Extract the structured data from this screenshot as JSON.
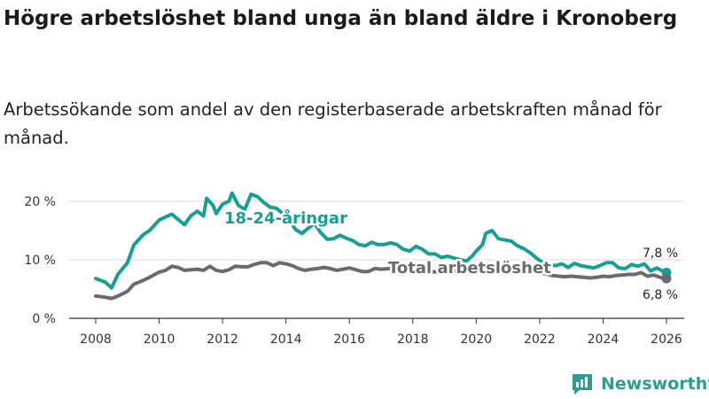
{
  "header": {
    "title": "Högre arbetslöshet bland unga än bland äldre i Kronoberg",
    "subtitle": "Arbetssökande som andel av den registerbaserade arbetskraften månad för månad."
  },
  "branding": {
    "name": "Newsworthy",
    "color": "#2e9c8f",
    "icon": "bar-chart-logo-icon"
  },
  "chart_data": {
    "type": "line",
    "title": "Högre arbetslöshet bland unga än bland äldre i Kronoberg",
    "subtitle": "Arbetssökande som andel av den registerbaserade arbetskraften månad för månad.",
    "xlabel": "",
    "ylabel": "",
    "xlim": [
      2007.6,
      2026.4
    ],
    "ylim": [
      0,
      22
    ],
    "x_ticks": [
      2008,
      2010,
      2012,
      2014,
      2016,
      2018,
      2020,
      2022,
      2024,
      2026
    ],
    "x_tick_labels": [
      "2008",
      "2010",
      "2012",
      "2014",
      "2016",
      "2018",
      "2020",
      "2022",
      "2024",
      "2026"
    ],
    "y_ticks": [
      0,
      10,
      20
    ],
    "y_tick_labels": [
      "0 %",
      "10 %",
      "20 %"
    ],
    "grid": true,
    "legend": "inline labels",
    "series": [
      {
        "name": "18-24-åringar",
        "color": "#16a094",
        "end_label": "7,8 %",
        "points": [
          [
            2008.0,
            6.8
          ],
          [
            2008.3,
            6.2
          ],
          [
            2008.5,
            5.2
          ],
          [
            2008.7,
            7.5
          ],
          [
            2009.0,
            9.5
          ],
          [
            2009.2,
            12.5
          ],
          [
            2009.5,
            14.3
          ],
          [
            2009.7,
            15.0
          ],
          [
            2010.0,
            16.8
          ],
          [
            2010.2,
            17.3
          ],
          [
            2010.4,
            17.8
          ],
          [
            2010.6,
            16.9
          ],
          [
            2010.8,
            16.0
          ],
          [
            2011.0,
            17.5
          ],
          [
            2011.2,
            18.3
          ],
          [
            2011.4,
            17.5
          ],
          [
            2011.5,
            20.5
          ],
          [
            2011.7,
            19.3
          ],
          [
            2011.8,
            17.9
          ],
          [
            2012.0,
            19.5
          ],
          [
            2012.2,
            20.0
          ],
          [
            2012.3,
            21.4
          ],
          [
            2012.5,
            19.3
          ],
          [
            2012.7,
            18.6
          ],
          [
            2012.9,
            21.2
          ],
          [
            2013.1,
            20.8
          ],
          [
            2013.3,
            19.8
          ],
          [
            2013.5,
            19.0
          ],
          [
            2013.7,
            18.8
          ],
          [
            2013.9,
            17.9
          ],
          [
            2014.1,
            16.9
          ],
          [
            2014.3,
            15.2
          ],
          [
            2014.5,
            14.5
          ],
          [
            2014.7,
            15.4
          ],
          [
            2014.9,
            16.2
          ],
          [
            2015.1,
            14.6
          ],
          [
            2015.3,
            13.5
          ],
          [
            2015.5,
            13.6
          ],
          [
            2015.7,
            14.2
          ],
          [
            2015.9,
            13.7
          ],
          [
            2016.1,
            13.3
          ],
          [
            2016.3,
            12.6
          ],
          [
            2016.5,
            12.4
          ],
          [
            2016.7,
            13.0
          ],
          [
            2016.9,
            12.6
          ],
          [
            2017.1,
            12.6
          ],
          [
            2017.3,
            12.9
          ],
          [
            2017.5,
            12.6
          ],
          [
            2017.7,
            11.8
          ],
          [
            2017.9,
            11.5
          ],
          [
            2018.1,
            12.3
          ],
          [
            2018.3,
            11.8
          ],
          [
            2018.5,
            11.0
          ],
          [
            2018.7,
            11.0
          ],
          [
            2018.9,
            10.4
          ],
          [
            2019.1,
            10.6
          ],
          [
            2019.3,
            10.3
          ],
          [
            2019.5,
            10.0
          ],
          [
            2019.7,
            9.8
          ],
          [
            2019.9,
            10.8
          ],
          [
            2020.0,
            11.5
          ],
          [
            2020.2,
            12.6
          ],
          [
            2020.3,
            14.5
          ],
          [
            2020.5,
            15.0
          ],
          [
            2020.7,
            13.6
          ],
          [
            2020.9,
            13.4
          ],
          [
            2021.1,
            13.2
          ],
          [
            2021.3,
            12.4
          ],
          [
            2021.5,
            11.9
          ],
          [
            2021.7,
            11.2
          ],
          [
            2021.9,
            10.3
          ],
          [
            2022.1,
            9.5
          ],
          [
            2022.3,
            9.1
          ],
          [
            2022.5,
            9.0
          ],
          [
            2022.7,
            9.3
          ],
          [
            2022.9,
            8.7
          ],
          [
            2023.1,
            9.4
          ],
          [
            2023.3,
            9.0
          ],
          [
            2023.5,
            8.8
          ],
          [
            2023.7,
            8.6
          ],
          [
            2023.9,
            9.0
          ],
          [
            2024.1,
            9.5
          ],
          [
            2024.3,
            9.5
          ],
          [
            2024.5,
            8.6
          ],
          [
            2024.7,
            8.5
          ],
          [
            2024.9,
            9.2
          ],
          [
            2025.1,
            8.9
          ],
          [
            2025.3,
            9.3
          ],
          [
            2025.5,
            8.1
          ],
          [
            2025.7,
            8.6
          ],
          [
            2025.9,
            8.0
          ],
          [
            2026.0,
            7.8
          ]
        ]
      },
      {
        "name": "Total arbetslöshet",
        "color": "#6b6b6b",
        "end_label": "6,8 %",
        "points": [
          [
            2008.0,
            3.8
          ],
          [
            2008.3,
            3.6
          ],
          [
            2008.5,
            3.4
          ],
          [
            2008.7,
            3.8
          ],
          [
            2009.0,
            4.6
          ],
          [
            2009.2,
            5.8
          ],
          [
            2009.5,
            6.5
          ],
          [
            2009.7,
            7.0
          ],
          [
            2010.0,
            7.9
          ],
          [
            2010.2,
            8.2
          ],
          [
            2010.4,
            8.9
          ],
          [
            2010.6,
            8.7
          ],
          [
            2010.8,
            8.2
          ],
          [
            2011.0,
            8.3
          ],
          [
            2011.2,
            8.4
          ],
          [
            2011.4,
            8.2
          ],
          [
            2011.6,
            8.9
          ],
          [
            2011.8,
            8.2
          ],
          [
            2012.0,
            8.0
          ],
          [
            2012.2,
            8.3
          ],
          [
            2012.4,
            8.9
          ],
          [
            2012.6,
            8.8
          ],
          [
            2012.8,
            8.8
          ],
          [
            2013.0,
            9.2
          ],
          [
            2013.2,
            9.5
          ],
          [
            2013.4,
            9.5
          ],
          [
            2013.6,
            9.0
          ],
          [
            2013.8,
            9.5
          ],
          [
            2014.0,
            9.3
          ],
          [
            2014.2,
            9.0
          ],
          [
            2014.4,
            8.5
          ],
          [
            2014.6,
            8.2
          ],
          [
            2014.8,
            8.4
          ],
          [
            2015.0,
            8.5
          ],
          [
            2015.2,
            8.7
          ],
          [
            2015.4,
            8.5
          ],
          [
            2015.6,
            8.2
          ],
          [
            2015.8,
            8.4
          ],
          [
            2016.0,
            8.6
          ],
          [
            2016.2,
            8.3
          ],
          [
            2016.4,
            8.0
          ],
          [
            2016.6,
            8.0
          ],
          [
            2016.8,
            8.5
          ],
          [
            2017.0,
            8.4
          ],
          [
            2017.3,
            8.5
          ],
          [
            2017.6,
            8.2
          ],
          [
            2017.9,
            8.2
          ],
          [
            2018.2,
            8.3
          ],
          [
            2018.5,
            8.0
          ],
          [
            2018.8,
            7.9
          ],
          [
            2019.1,
            8.0
          ],
          [
            2019.4,
            8.1
          ],
          [
            2019.7,
            8.2
          ],
          [
            2020.0,
            8.5
          ],
          [
            2020.3,
            8.8
          ],
          [
            2020.6,
            8.7
          ],
          [
            2020.9,
            8.6
          ],
          [
            2021.2,
            8.5
          ],
          [
            2021.5,
            8.2
          ],
          [
            2021.8,
            8.0
          ],
          [
            2022.0,
            7.8
          ],
          [
            2022.2,
            7.6
          ],
          [
            2022.4,
            7.3
          ],
          [
            2022.6,
            7.2
          ],
          [
            2022.8,
            7.1
          ],
          [
            2023.0,
            7.2
          ],
          [
            2023.2,
            7.1
          ],
          [
            2023.4,
            7.0
          ],
          [
            2023.6,
            6.9
          ],
          [
            2023.8,
            7.0
          ],
          [
            2024.0,
            7.2
          ],
          [
            2024.2,
            7.1
          ],
          [
            2024.4,
            7.3
          ],
          [
            2024.6,
            7.4
          ],
          [
            2024.8,
            7.5
          ],
          [
            2025.0,
            7.5
          ],
          [
            2025.2,
            7.8
          ],
          [
            2025.4,
            7.2
          ],
          [
            2025.6,
            7.4
          ],
          [
            2025.8,
            7.0
          ],
          [
            2026.0,
            6.8
          ]
        ]
      }
    ]
  }
}
